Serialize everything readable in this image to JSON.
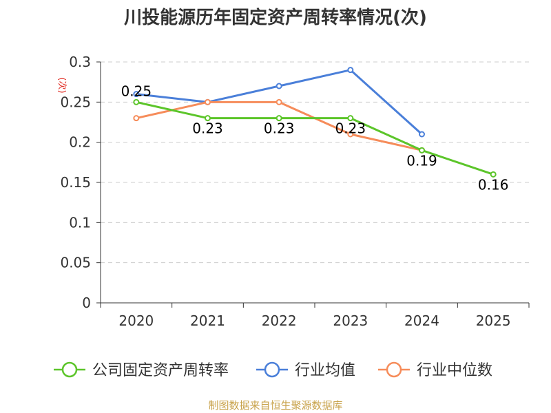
{
  "chart_data": {
    "type": "line",
    "title": "川投能源历年固定资产周转率情况(次)",
    "unit": "(次)",
    "categories": [
      "2020",
      "2021",
      "2022",
      "2023",
      "2024",
      "2025"
    ],
    "ylim": [
      0,
      0.3
    ],
    "yticks": [
      "0",
      "0.05",
      "0.1",
      "0.15",
      "0.2",
      "0.25",
      "0.3"
    ],
    "ytick_values": [
      0,
      0.05,
      0.1,
      0.15,
      0.2,
      0.25,
      0.3
    ],
    "grid": true,
    "series": [
      {
        "name": "公司固定资产周转率",
        "color": "#5cc52a",
        "values": [
          0.25,
          0.23,
          0.23,
          0.23,
          0.19,
          0.16
        ],
        "labels": [
          "0.25",
          "0.23",
          "0.23",
          "0.23",
          "0.19",
          "0.16"
        ]
      },
      {
        "name": "行业均值",
        "color": "#4a7fd9",
        "values": [
          0.26,
          0.25,
          0.27,
          0.29,
          0.21,
          null
        ]
      },
      {
        "name": "行业中位数",
        "color": "#f68c5a",
        "values": [
          0.23,
          0.25,
          0.25,
          0.21,
          0.19,
          null
        ]
      }
    ],
    "legend": "bottom",
    "source": "制图数据来自恒生聚源数据库"
  }
}
